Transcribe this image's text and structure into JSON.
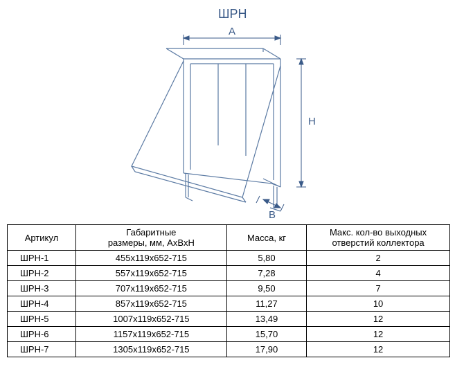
{
  "title": "ШРН",
  "diagram": {
    "labels": {
      "A": "A",
      "B": "B",
      "H": "H"
    },
    "stroke": "#5b7aa3",
    "stroke_width": 1.2,
    "dim_stroke": "#3a5a88"
  },
  "table": {
    "columns": [
      "Артикул",
      "Габаритные\nразмеры, мм, AxBxH",
      "Масса, кг",
      "Макс. кол-во выходных\nотверстий коллектора"
    ],
    "rows": [
      [
        "ШРН-1",
        "455x119x652-715",
        "5,80",
        "2"
      ],
      [
        "ШРН-2",
        "557x119x652-715",
        "7,28",
        "4"
      ],
      [
        "ШРН-3",
        "707x119x652-715",
        "9,50",
        "7"
      ],
      [
        "ШРН-4",
        "857x119x652-715",
        "11,27",
        "10"
      ],
      [
        "ШРН-5",
        "1007x119x652-715",
        "13,49",
        "12"
      ],
      [
        "ШРН-6",
        "1157x119x652-715",
        "15,70",
        "12"
      ],
      [
        "ШРН-7",
        "1305x119x652-715",
        "17,90",
        "12"
      ]
    ]
  }
}
